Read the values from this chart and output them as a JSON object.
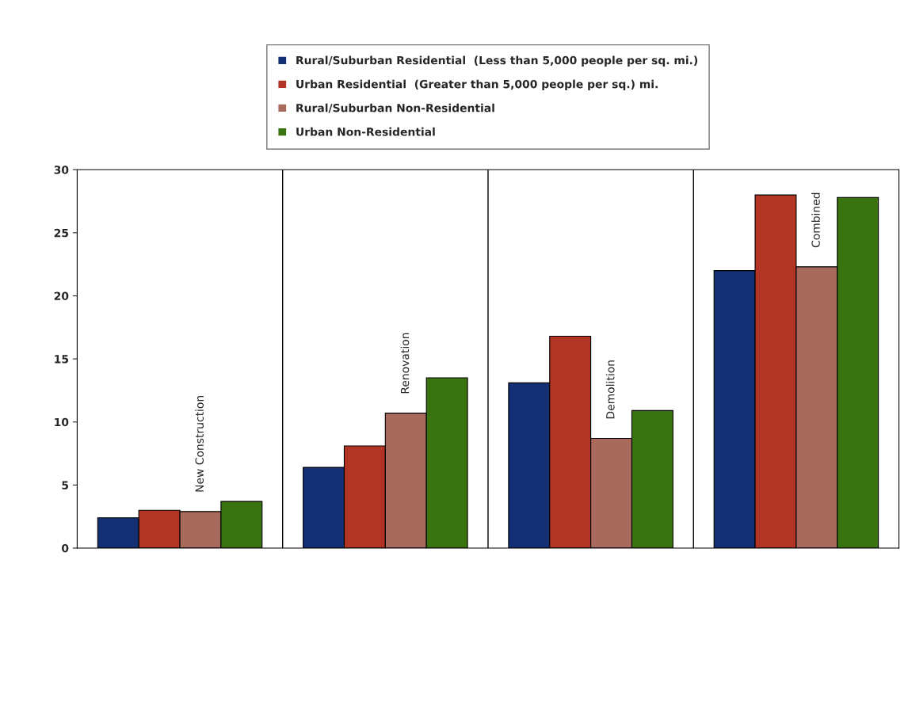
{
  "chart_data": {
    "type": "bar",
    "categories": [
      "New Construction",
      "Renovation",
      "Demolition",
      "Combined"
    ],
    "series": [
      {
        "name": "Rural/Suburban Residential  (Less than 5,000 people per sq. mi.)",
        "color": "#142f74",
        "values": [
          2.4,
          6.4,
          13.1,
          22.0
        ]
      },
      {
        "name": "Urban Residential  (Greater than 5,000 people per sq.) mi.",
        "color": "#b23424",
        "values": [
          3.0,
          8.1,
          16.8,
          28.0
        ]
      },
      {
        "name": "Rural/Suburban Non-Residential",
        "color": "#a86a5c",
        "values": [
          2.9,
          10.7,
          8.7,
          22.3
        ]
      },
      {
        "name": "Urban Non-Residential",
        "color": "#3a7410",
        "values": [
          3.7,
          13.5,
          10.9,
          27.8
        ]
      }
    ],
    "ylim": [
      0,
      30
    ],
    "yticks": [
      0,
      5,
      10,
      15,
      20,
      25,
      30
    ],
    "grid": false,
    "legend": "top"
  }
}
